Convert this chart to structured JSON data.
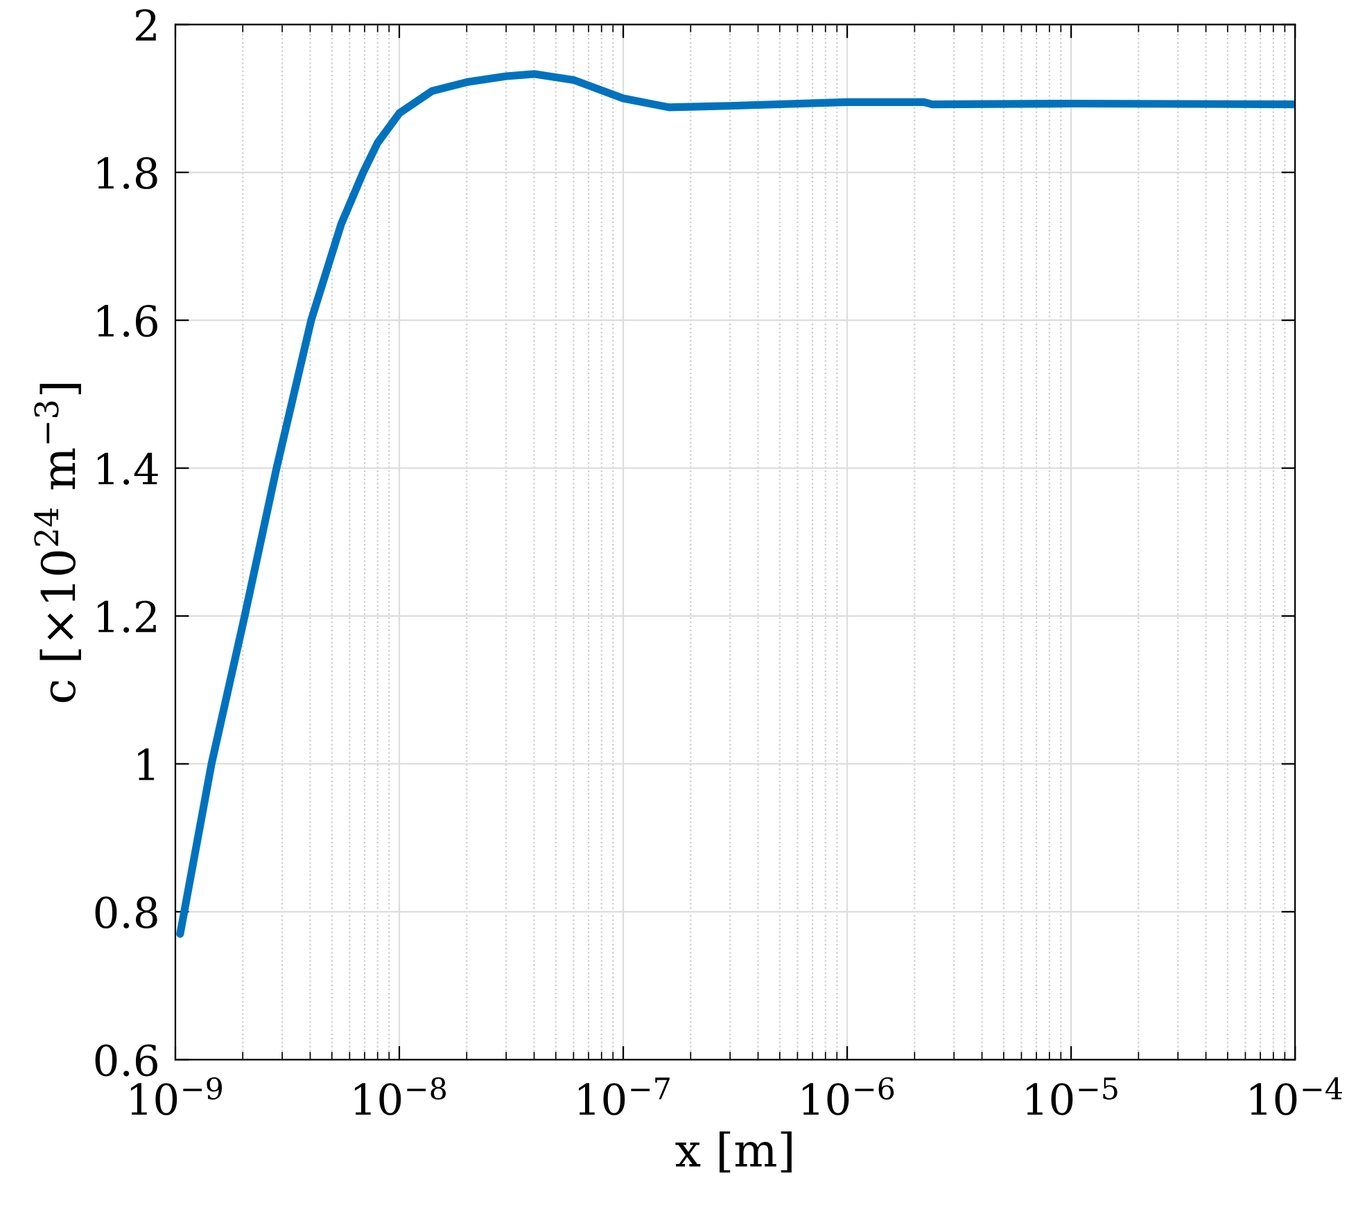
{
  "chart_data": {
    "type": "line",
    "xlabel": "x [m]",
    "ylabel": "c [×10$^{24}$ m$^{−3}$]",
    "log": "x",
    "x": [
      1.05e-09,
      1.45e-09,
      2.04e-09,
      2.83e-09,
      4.04e-09,
      5.5e-09,
      6.9e-09,
      8e-09,
      1e-08,
      1.4e-08,
      2e-08,
      3e-08,
      4e-08,
      6e-08,
      1e-07,
      1.6e-07,
      3e-07,
      1e-06,
      2.2e-06,
      2.4e-06,
      1e-05,
      0.0001
    ],
    "series": [
      {
        "color": "#0072bd",
        "values": [
          0.77,
          1.0,
          1.2,
          1.4,
          1.6,
          1.73,
          1.8,
          1.84,
          1.88,
          1.91,
          1.922,
          1.93,
          1.933,
          1.925,
          1.9,
          1.888,
          1.89,
          1.895,
          1.895,
          1.892,
          1.893,
          1.892
        ]
      }
    ],
    "xlim": [
      1e-09,
      0.0001
    ],
    "ylim": [
      0.6,
      2
    ],
    "xticks": [
      {
        "value": 1e-09,
        "label": "10$^{−9}$"
      },
      {
        "value": 1e-08,
        "label": "10$^{−8}$"
      },
      {
        "value": 1e-07,
        "label": "10$^{−7}$"
      },
      {
        "value": 1e-06,
        "label": "10$^{−6}$"
      },
      {
        "value": 1e-05,
        "label": "10$^{−5}$"
      },
      {
        "value": 0.0001,
        "label": "10$^{−4}$"
      }
    ],
    "yticks": [
      0.6,
      0.8,
      1,
      1.2,
      1.4,
      1.6,
      1.8,
      2
    ],
    "grid": true,
    "marker": "none",
    "line_style": "solid"
  }
}
